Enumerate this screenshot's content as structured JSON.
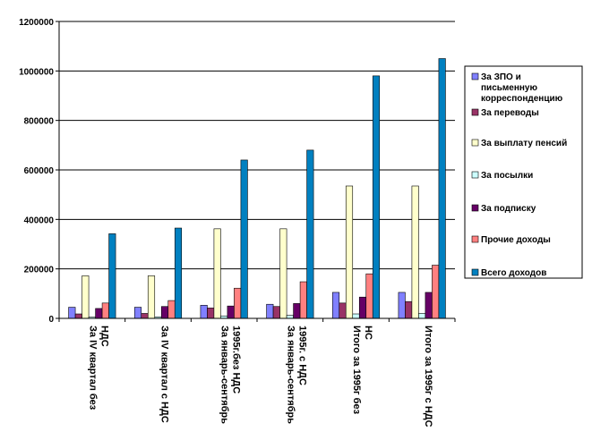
{
  "chart_data": {
    "type": "bar",
    "title": "",
    "xlabel": "",
    "ylabel": "",
    "ylim": [
      0,
      1200000
    ],
    "yticks": [
      0,
      200000,
      400000,
      600000,
      800000,
      1000000,
      1200000
    ],
    "grid": true,
    "legend_position": "right",
    "categories": [
      [
        "За IV квартал без",
        "НДС"
      ],
      [
        "За IV квартал с НДС"
      ],
      [
        "За январь-сентябрь",
        "1995г.без НДС"
      ],
      [
        "За январь-сентябрь",
        "1995г. с НДС"
      ],
      [
        "Итого за 1995г без",
        "НС"
      ],
      [
        "Итого за 1995г с НДС"
      ]
    ],
    "series": [
      {
        "name": "За ЗПО и письменную корреспонденцию",
        "legend_lines": [
          "За ЗПО и",
          "письменную",
          "корреспонденцию"
        ],
        "color": "#8080ff",
        "values": [
          45000,
          45000,
          53000,
          57000,
          105000,
          105000
        ]
      },
      {
        "name": "За переводы",
        "legend_lines": [
          "За переводы"
        ],
        "color": "#993366",
        "values": [
          18000,
          20000,
          42000,
          48000,
          62000,
          68000
        ]
      },
      {
        "name": "За выплату пенсий",
        "legend_lines": [
          "За выплату пенсий"
        ],
        "color": "#ffffcc",
        "values": [
          172000,
          172000,
          362000,
          362000,
          535000,
          535000
        ]
      },
      {
        "name": "За посылки",
        "legend_lines": [
          "За посылки"
        ],
        "color": "#ccffff",
        "values": [
          5000,
          6000,
          10000,
          12000,
          18000,
          20000
        ]
      },
      {
        "name": "За подписку",
        "legend_lines": [
          "За подписку"
        ],
        "color": "#660066",
        "values": [
          40000,
          48000,
          50000,
          60000,
          86000,
          105000
        ]
      },
      {
        "name": "Прочие доходы",
        "legend_lines": [
          "Прочие доходы"
        ],
        "color": "#ff8080",
        "values": [
          62000,
          72000,
          122000,
          148000,
          180000,
          215000
        ]
      },
      {
        "name": "Всего доходов",
        "legend_lines": [
          "Всего доходов"
        ],
        "color": "#0080c0",
        "values": [
          342000,
          365000,
          640000,
          680000,
          980000,
          1050000
        ]
      }
    ]
  }
}
